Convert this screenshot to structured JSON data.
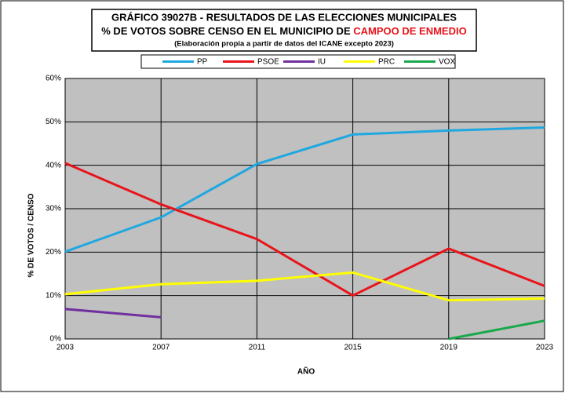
{
  "chart_data": {
    "type": "line",
    "title": "GRÁFICO 39027B - RESULTADOS DE LAS ELECCIONES MUNICIPALES",
    "subtitle": "% DE VOTOS SOBRE CENSO EN EL MUNICIPIO DE",
    "municipality": "CAMPOO DE ENMEDIO",
    "note": "(Elaboración propia a partir de datos del ICANE excepto 2023)",
    "x_label": "AÑO",
    "y_label": "% DE VOTOS / CENSO",
    "x": [
      2003,
      2007,
      2011,
      2015,
      2019,
      2023
    ],
    "xlim": [
      2003,
      2023
    ],
    "xticks": [
      2003,
      2007,
      2011,
      2015,
      2019,
      2023
    ],
    "ylim": [
      0,
      60
    ],
    "yticks": [
      {
        "value": 0,
        "label": "0%"
      },
      {
        "value": 10,
        "label": "10%"
      },
      {
        "value": 20,
        "label": "20%"
      },
      {
        "value": 30,
        "label": "30%"
      },
      {
        "value": 40,
        "label": "40%"
      },
      {
        "value": 50,
        "label": "50%"
      },
      {
        "value": 60,
        "label": "60%"
      }
    ],
    "grid": true,
    "series": [
      {
        "name": "PP",
        "color": "#1fa8e0",
        "values": [
          20.1,
          28.0,
          40.3,
          47.1,
          48.0,
          48.7
        ]
      },
      {
        "name": "PSOE",
        "color": "#e8141b",
        "values": [
          40.5,
          31.0,
          23.0,
          10.0,
          20.8,
          12.2
        ]
      },
      {
        "name": "IU",
        "color": "#7030a0",
        "values": [
          6.9,
          5.0,
          null,
          null,
          null,
          null
        ]
      },
      {
        "name": "PRC",
        "color": "#ffff00",
        "values": [
          10.3,
          12.6,
          13.4,
          15.3,
          8.9,
          9.3
        ]
      },
      {
        "name": "VOX",
        "color": "#1aa84c",
        "values": [
          null,
          null,
          null,
          null,
          0,
          4.2
        ]
      }
    ]
  }
}
